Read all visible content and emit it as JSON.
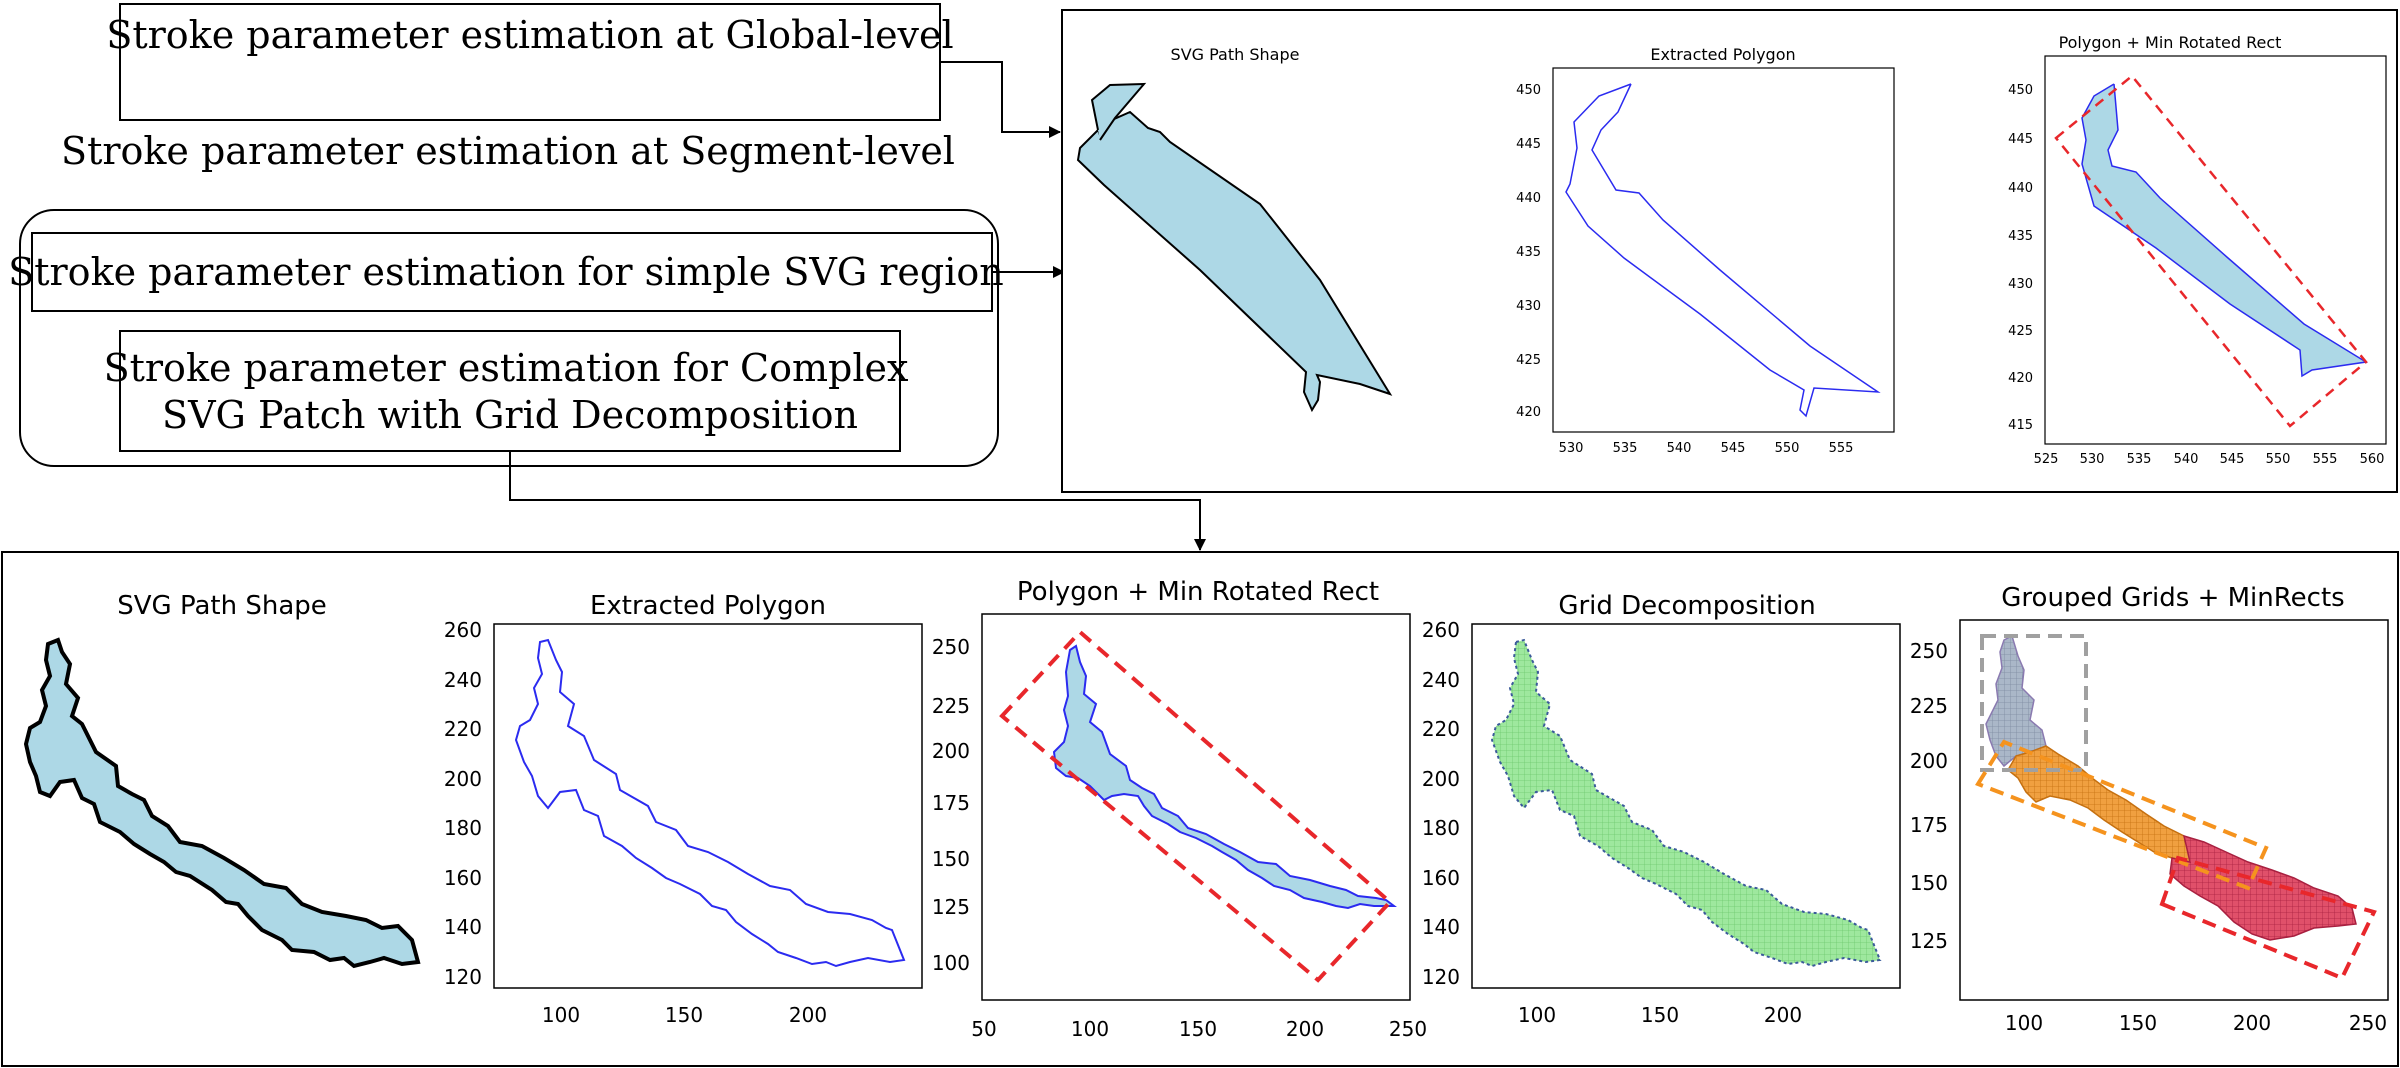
{
  "labels": {
    "global": "Stroke parameter estimation at Global-level",
    "segment": "Stroke parameter estimation at Segment-level",
    "simple": "Stroke parameter estimation for simple SVG region",
    "complex_line1": "Stroke parameter estimation for Complex",
    "complex_line2": "SVG Patch with Grid Decomposition"
  },
  "top_panel": {
    "svg_shape_title": "SVG Path Shape",
    "extracted": {
      "title": "Extracted Polygon",
      "x_ticks": [
        "530",
        "535",
        "540",
        "545",
        "550",
        "555"
      ],
      "y_ticks": [
        "450",
        "445",
        "440",
        "435",
        "430",
        "425",
        "420"
      ]
    },
    "minrect": {
      "title": "Polygon + Min Rotated Rect",
      "x_ticks": [
        "525",
        "530",
        "535",
        "540",
        "545",
        "550",
        "555",
        "560"
      ],
      "y_ticks": [
        "450",
        "445",
        "440",
        "435",
        "430",
        "425",
        "420",
        "415"
      ]
    }
  },
  "bottom_panel": {
    "svg_shape_title": "SVG Path Shape",
    "extracted": {
      "title": "Extracted Polygon",
      "x_ticks": [
        "100",
        "150",
        "200"
      ],
      "y_ticks": [
        "260",
        "240",
        "220",
        "200",
        "180",
        "160",
        "140",
        "120"
      ]
    },
    "minrect": {
      "title": "Polygon + Min Rotated Rect",
      "x_ticks": [
        "50",
        "100",
        "150",
        "200",
        "250"
      ],
      "y_ticks": [
        "250",
        "225",
        "200",
        "175",
        "150",
        "125",
        "100"
      ]
    },
    "grid": {
      "title": "Grid Decomposition",
      "x_ticks": [
        "100",
        "150",
        "200"
      ],
      "y_ticks": [
        "260",
        "240",
        "220",
        "200",
        "180",
        "160",
        "140",
        "120"
      ]
    },
    "grouped": {
      "title": "Grouped Grids + MinRects",
      "x_ticks": [
        "100",
        "150",
        "200",
        "250"
      ],
      "y_ticks": [
        "250",
        "225",
        "200",
        "175",
        "150",
        "125"
      ]
    }
  },
  "colors": {
    "fill_light_blue": "#add8e6",
    "polygon_blue": "#2b2bf0",
    "rect_red": "#e8272b",
    "grid_green": "#9ee89e",
    "rect_orange": "#f5931e",
    "rect_gray": "#a0a0a0",
    "cell_red": "#d8304a"
  }
}
